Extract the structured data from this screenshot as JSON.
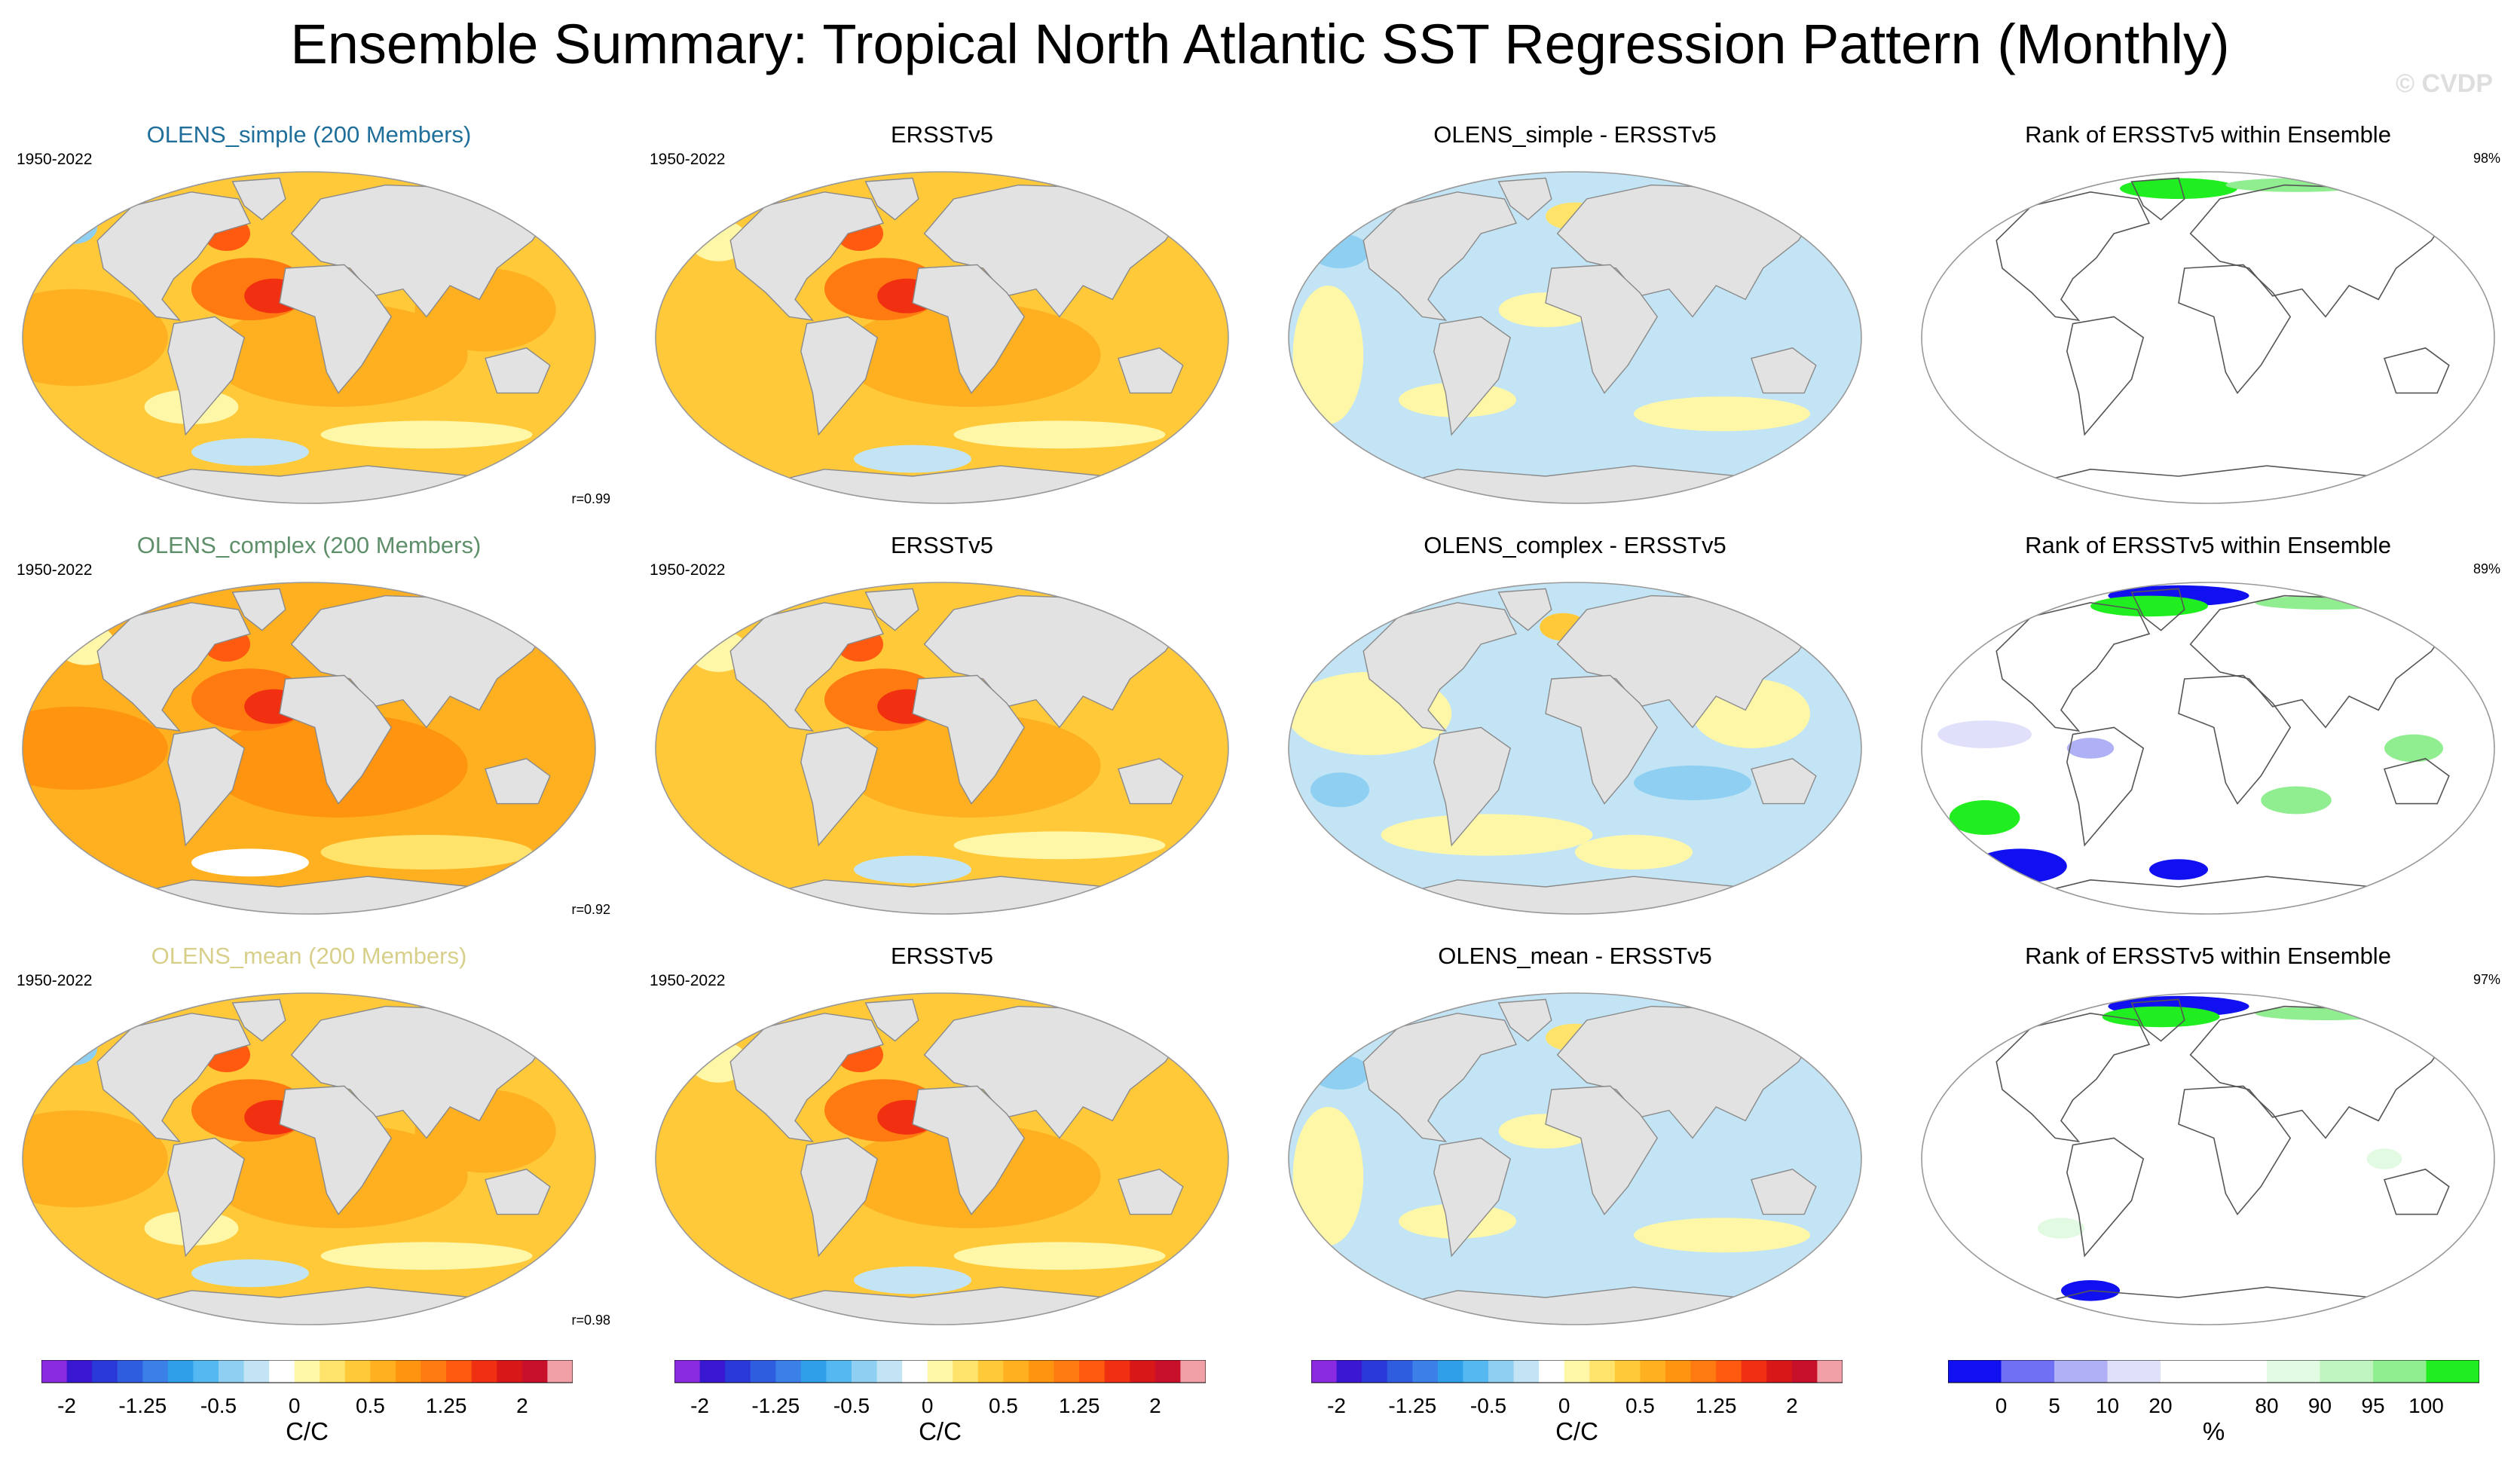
{
  "title": "Ensemble Summary: Tropical North Atlantic SST Regression Pattern (Monthly)",
  "watermark": "© CVDP",
  "colors": {
    "olens_simple": "#1f6f9a",
    "olens_complex": "#5e8f6a",
    "olens_mean": "#d8d08a",
    "land": "#e2e2e2",
    "coast": "#8a8a8a"
  },
  "panels": [
    {
      "row": 0,
      "col": 0,
      "type": "model",
      "title": "OLENS_simple (200 Members)",
      "title_color": "#1f6f9a",
      "period": "1950-2022",
      "r": "r=0.99"
    },
    {
      "row": 0,
      "col": 1,
      "type": "obs",
      "title": "ERSSTv5",
      "period": "1950-2022"
    },
    {
      "row": 0,
      "col": 2,
      "type": "diff",
      "title": "OLENS_simple - ERSSTv5"
    },
    {
      "row": 0,
      "col": 3,
      "type": "rank",
      "title": "Rank of ERSSTv5 within Ensemble",
      "pct": "98%"
    },
    {
      "row": 1,
      "col": 0,
      "type": "model",
      "title": "OLENS_complex (200 Members)",
      "title_color": "#5e8f6a",
      "period": "1950-2022",
      "r": "r=0.92"
    },
    {
      "row": 1,
      "col": 1,
      "type": "obs",
      "title": "ERSSTv5",
      "period": "1950-2022"
    },
    {
      "row": 1,
      "col": 2,
      "type": "diff",
      "title": "OLENS_complex - ERSSTv5"
    },
    {
      "row": 1,
      "col": 3,
      "type": "rank",
      "title": "Rank of ERSSTv5 within Ensemble",
      "pct": "89%"
    },
    {
      "row": 2,
      "col": 0,
      "type": "model",
      "title": "OLENS_mean (200 Members)",
      "title_color": "#d8d08a",
      "period": "1950-2022",
      "r": "r=0.98"
    },
    {
      "row": 2,
      "col": 1,
      "type": "obs",
      "title": "ERSSTv5",
      "period": "1950-2022"
    },
    {
      "row": 2,
      "col": 2,
      "type": "diff",
      "title": "OLENS_mean - ERSSTv5"
    },
    {
      "row": 2,
      "col": 3,
      "type": "rank",
      "title": "Rank of ERSSTv5 within Ensemble",
      "pct": "97%"
    }
  ],
  "colorbars": [
    {
      "unit": "C/C",
      "colors": [
        "#8a2be2",
        "#3a17d0",
        "#2a3ad8",
        "#2f5de0",
        "#3b7fe8",
        "#2f9fea",
        "#56b8f0",
        "#8fd0f2",
        "#c2e4f4",
        "#ffffff",
        "#fff7a8",
        "#ffe36a",
        "#ffc93a",
        "#ffb020",
        "#ff9410",
        "#ff7a10",
        "#ff5a10",
        "#f03010",
        "#d81818",
        "#c8102a",
        "#f2a0a8"
      ],
      "labels": [
        "-2",
        "-1.25",
        "-0.5",
        "0",
        "0.5",
        "1.25",
        "2"
      ],
      "label_bounds": [
        1,
        4,
        7,
        10,
        13,
        16,
        19
      ]
    },
    {
      "unit": "C/C",
      "colors": [
        "#8a2be2",
        "#3a17d0",
        "#2a3ad8",
        "#2f5de0",
        "#3b7fe8",
        "#2f9fea",
        "#56b8f0",
        "#8fd0f2",
        "#c2e4f4",
        "#ffffff",
        "#fff7a8",
        "#ffe36a",
        "#ffc93a",
        "#ffb020",
        "#ff9410",
        "#ff7a10",
        "#ff5a10",
        "#f03010",
        "#d81818",
        "#c8102a",
        "#f2a0a8"
      ],
      "labels": [
        "-2",
        "-1.25",
        "-0.5",
        "0",
        "0.5",
        "1.25",
        "2"
      ],
      "label_bounds": [
        1,
        4,
        7,
        10,
        13,
        16,
        19
      ]
    },
    {
      "unit": "C/C",
      "colors": [
        "#8a2be2",
        "#3a17d0",
        "#2a3ad8",
        "#2f5de0",
        "#3b7fe8",
        "#2f9fea",
        "#56b8f0",
        "#8fd0f2",
        "#c2e4f4",
        "#ffffff",
        "#fff7a8",
        "#ffe36a",
        "#ffc93a",
        "#ffb020",
        "#ff9410",
        "#ff7a10",
        "#ff5a10",
        "#f03010",
        "#d81818",
        "#c8102a",
        "#f2a0a8"
      ],
      "labels": [
        "-2",
        "-1.25",
        "-0.5",
        "0",
        "0.5",
        "1.25",
        "2"
      ],
      "label_bounds": [
        1,
        4,
        7,
        10,
        13,
        16,
        19
      ]
    },
    {
      "unit": "%",
      "colors": [
        "#1010f0",
        "#7070f4",
        "#b0b0f6",
        "#e0e0fa",
        "#ffffff",
        "#ffffff",
        "#e2fae2",
        "#c0f4c0",
        "#90ee90",
        "#20ee20"
      ],
      "labels": [
        "0",
        "5",
        "10",
        "20",
        "80",
        "90",
        "95",
        "100"
      ],
      "label_bounds": [
        1,
        2,
        3,
        4,
        6,
        7,
        8,
        9
      ]
    }
  ],
  "chart_data": [
    {
      "type": "heatmap",
      "title": "OLENS_simple (200 Members)",
      "period": "1950-2022",
      "pattern_correlation": 0.99,
      "units": "C/C",
      "range": [
        -2,
        2
      ],
      "maximum": "tropical North Atlantic, >1.25"
    },
    {
      "type": "heatmap",
      "title": "ERSSTv5",
      "period": "1950-2022",
      "units": "C/C",
      "range": [
        -2,
        2
      ]
    },
    {
      "type": "heatmap",
      "title": "OLENS_simple - ERSSTv5",
      "units": "C/C",
      "range": [
        -2,
        2
      ]
    },
    {
      "type": "heatmap",
      "title": "Rank of ERSSTv5 within Ensemble",
      "percent": 98,
      "units": "%",
      "levels": [
        0,
        5,
        10,
        20,
        80,
        90,
        95,
        100
      ]
    },
    {
      "type": "heatmap",
      "title": "OLENS_complex (200 Members)",
      "period": "1950-2022",
      "pattern_correlation": 0.92,
      "units": "C/C",
      "range": [
        -2,
        2
      ]
    },
    {
      "type": "heatmap",
      "title": "ERSSTv5",
      "period": "1950-2022",
      "units": "C/C",
      "range": [
        -2,
        2
      ]
    },
    {
      "type": "heatmap",
      "title": "OLENS_complex - ERSSTv5",
      "units": "C/C",
      "range": [
        -2,
        2
      ]
    },
    {
      "type": "heatmap",
      "title": "Rank of ERSSTv5 within Ensemble",
      "percent": 89,
      "units": "%",
      "levels": [
        0,
        5,
        10,
        20,
        80,
        90,
        95,
        100
      ]
    },
    {
      "type": "heatmap",
      "title": "OLENS_mean (200 Members)",
      "period": "1950-2022",
      "pattern_correlation": 0.98,
      "units": "C/C",
      "range": [
        -2,
        2
      ]
    },
    {
      "type": "heatmap",
      "title": "ERSSTv5",
      "period": "1950-2022",
      "units": "C/C",
      "range": [
        -2,
        2
      ]
    },
    {
      "type": "heatmap",
      "title": "OLENS_mean - ERSSTv5",
      "units": "C/C",
      "range": [
        -2,
        2
      ]
    },
    {
      "type": "heatmap",
      "title": "Rank of ERSSTv5 within Ensemble",
      "percent": 97,
      "units": "%",
      "levels": [
        0,
        5,
        10,
        20,
        80,
        90,
        95,
        100
      ]
    }
  ]
}
